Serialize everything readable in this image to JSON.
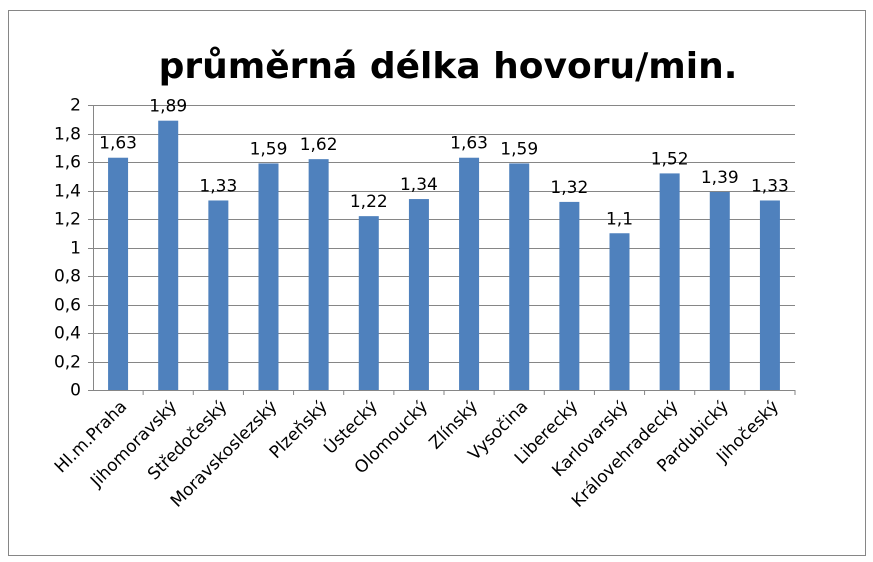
{
  "chart_data": {
    "type": "bar",
    "title": "průměrná délka hovoru/min.",
    "categories": [
      "Hl.m.Praha",
      "Jihomoravský",
      "Středočeský",
      "Moravskoslezský",
      "Plzeňský",
      "Ústecký",
      "Olomoucký",
      "Zlínský",
      "Vysočina",
      "Liberecký",
      "Karlovarský",
      "Královehradecký",
      "Pardubický",
      "Jihočeský"
    ],
    "values": [
      1.63,
      1.89,
      1.33,
      1.59,
      1.62,
      1.22,
      1.34,
      1.63,
      1.59,
      1.32,
      1.1,
      1.52,
      1.39,
      1.33
    ],
    "value_labels": [
      "1,63",
      "1,89",
      "1,33",
      "1,59",
      "1,62",
      "1,22",
      "1,34",
      "1,63",
      "1,59",
      "1,32",
      "1,1",
      "1,52",
      "1,39",
      "1,33"
    ],
    "color": "#4f81bd",
    "ylim": [
      0,
      2
    ],
    "yticks": [
      0,
      {
        "value": 0.2,
        "label": "0,2"
      },
      {
        "value": 0.4,
        "label": "0,4"
      },
      {
        "value": 0.6,
        "label": "0,6"
      },
      {
        "value": 0.8,
        "label": "0,8"
      },
      1,
      {
        "value": 1.2,
        "label": "1,2"
      },
      {
        "value": 1.4,
        "label": "1,4"
      },
      {
        "value": 1.6,
        "label": "1,6"
      },
      {
        "value": 1.8,
        "label": "1,8"
      },
      2
    ],
    "grid": true
  }
}
